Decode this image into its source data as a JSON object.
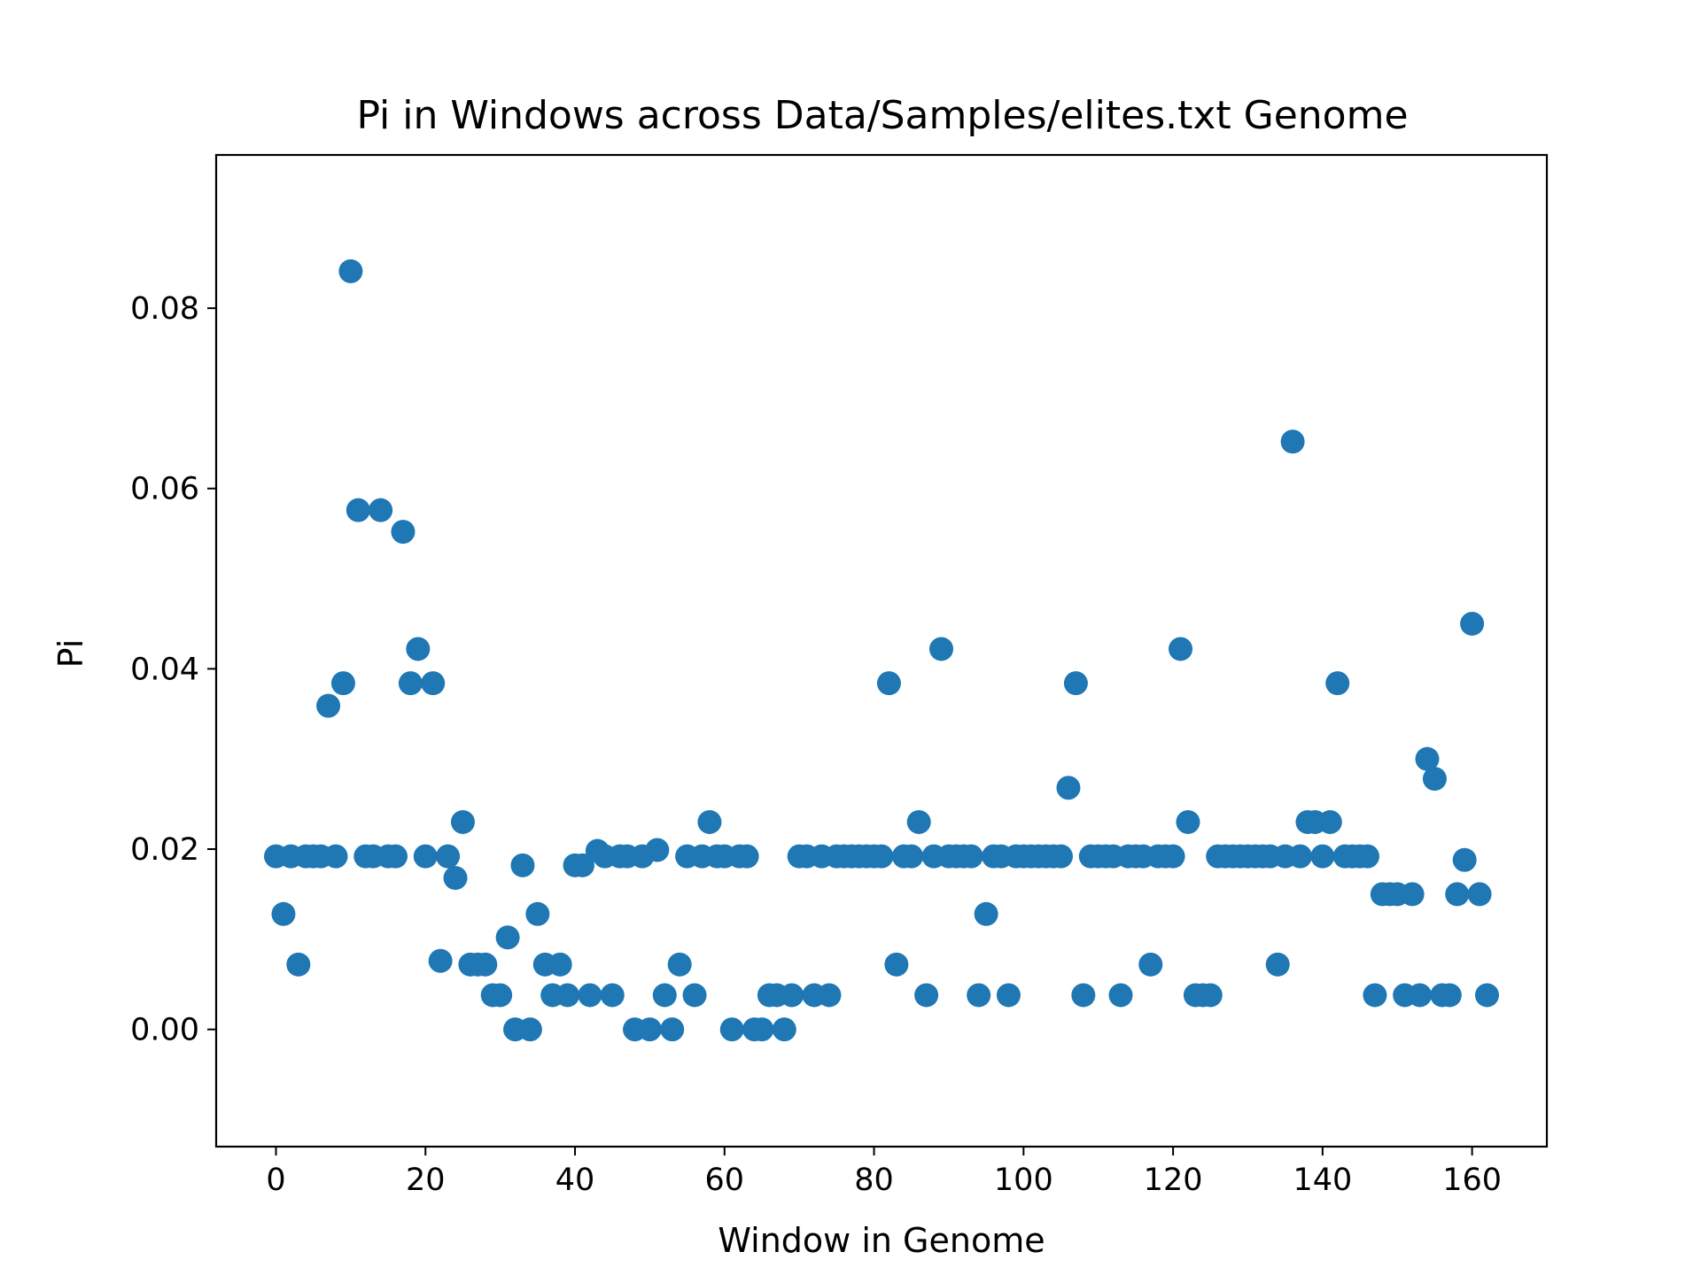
{
  "chart_data": {
    "type": "scatter",
    "title": "Pi in Windows across Data/Samples/elites.txt Genome",
    "xlabel": "Window in Genome",
    "ylabel": "Pi",
    "xlim": [
      -8,
      170
    ],
    "ylim": [
      -0.013,
      0.097
    ],
    "xticks": [
      0,
      20,
      40,
      60,
      80,
      100,
      120,
      140,
      160
    ],
    "yticks": [
      0.0,
      0.02,
      0.04,
      0.06,
      0.08
    ],
    "xtick_labels": [
      "0",
      "20",
      "40",
      "60",
      "80",
      "100",
      "120",
      "140",
      "160"
    ],
    "ytick_labels": [
      "0.00",
      "0.02",
      "0.04",
      "0.06",
      "0.08"
    ],
    "marker_color": "#1f77b4",
    "grid": false,
    "series": [
      {
        "x": [
          0,
          1,
          2,
          3,
          4,
          5,
          6,
          7,
          8,
          9,
          10,
          11,
          12,
          13,
          14,
          15,
          16,
          17,
          18,
          19,
          20,
          21,
          22,
          23,
          24,
          25,
          26,
          27,
          28,
          29,
          30,
          31,
          32,
          33,
          34,
          35,
          36,
          37,
          38,
          39,
          40,
          41,
          42,
          43,
          44,
          45,
          46,
          47,
          48,
          49,
          50,
          51,
          52,
          53,
          54,
          55,
          56,
          57,
          58,
          59,
          60,
          61,
          62,
          63,
          64,
          65,
          66,
          67,
          68,
          69,
          70,
          71,
          72,
          73,
          74,
          75,
          76,
          77,
          78,
          79,
          80,
          81,
          82,
          83,
          84,
          85,
          86,
          87,
          88,
          89,
          90,
          91,
          92,
          93,
          94,
          95,
          96,
          97,
          98,
          99,
          100,
          101,
          102,
          103,
          104,
          105,
          106,
          107,
          108,
          109,
          110,
          111,
          112,
          113,
          114,
          115,
          116,
          117,
          118,
          119,
          120,
          121,
          122,
          123,
          124,
          125,
          126,
          127,
          128,
          129,
          130,
          131,
          132,
          133,
          134,
          135,
          136,
          137,
          138,
          139,
          140,
          141,
          142,
          143,
          144,
          145,
          146,
          147,
          148,
          149,
          150,
          151,
          152,
          153,
          154,
          155,
          156,
          157,
          158,
          159,
          160,
          161,
          162
        ],
        "y": [
          0.0192,
          0.0128,
          0.0192,
          0.0072,
          0.0192,
          0.0192,
          0.0192,
          0.0359,
          0.0192,
          0.0384,
          0.0841,
          0.0576,
          0.0192,
          0.0192,
          0.0576,
          0.0192,
          0.0192,
          0.0552,
          0.0384,
          0.0422,
          0.0192,
          0.0384,
          0.0076,
          0.0192,
          0.0168,
          0.023,
          0.0072,
          0.0072,
          0.0072,
          0.0038,
          0.0038,
          0.0102,
          0.0,
          0.0182,
          0.0,
          0.0128,
          0.0072,
          0.0038,
          0.0072,
          0.0038,
          0.0182,
          0.0182,
          0.0038,
          0.0198,
          0.0192,
          0.0038,
          0.0192,
          0.0192,
          0.0,
          0.0192,
          0.0,
          0.0199,
          0.0038,
          0.0,
          0.0072,
          0.0192,
          0.0038,
          0.0192,
          0.023,
          0.0192,
          0.0192,
          0.0,
          0.0192,
          0.0192,
          0.0,
          0.0,
          0.0038,
          0.0038,
          0.0,
          0.0038,
          0.0192,
          0.0192,
          0.0038,
          0.0192,
          0.0038,
          0.0192,
          0.0192,
          0.0192,
          0.0192,
          0.0192,
          0.0192,
          0.0192,
          0.0384,
          0.0072,
          0.0192,
          0.0192,
          0.023,
          0.0038,
          0.0192,
          0.0422,
          0.0192,
          0.0192,
          0.0192,
          0.0192,
          0.0038,
          0.0128,
          0.0192,
          0.0192,
          0.0038,
          0.0192,
          0.0192,
          0.0192,
          0.0192,
          0.0192,
          0.0192,
          0.0192,
          0.0268,
          0.0384,
          0.0038,
          0.0192,
          0.0192,
          0.0192,
          0.0192,
          0.0038,
          0.0192,
          0.0192,
          0.0192,
          0.0072,
          0.0192,
          0.0192,
          0.0192,
          0.0422,
          0.023,
          0.0038,
          0.0038,
          0.0038,
          0.0192,
          0.0192,
          0.0192,
          0.0192,
          0.0192,
          0.0192,
          0.0192,
          0.0192,
          0.0072,
          0.0192,
          0.0652,
          0.0192,
          0.023,
          0.023,
          0.0192,
          0.023,
          0.0384,
          0.0192,
          0.0192,
          0.0192,
          0.0192,
          0.0038,
          0.015,
          0.015,
          0.015,
          0.0038,
          0.015,
          0.0038,
          0.03,
          0.0278,
          0.0038,
          0.0038,
          0.015,
          0.0188,
          0.045,
          0.015,
          0.0038
        ]
      }
    ]
  }
}
